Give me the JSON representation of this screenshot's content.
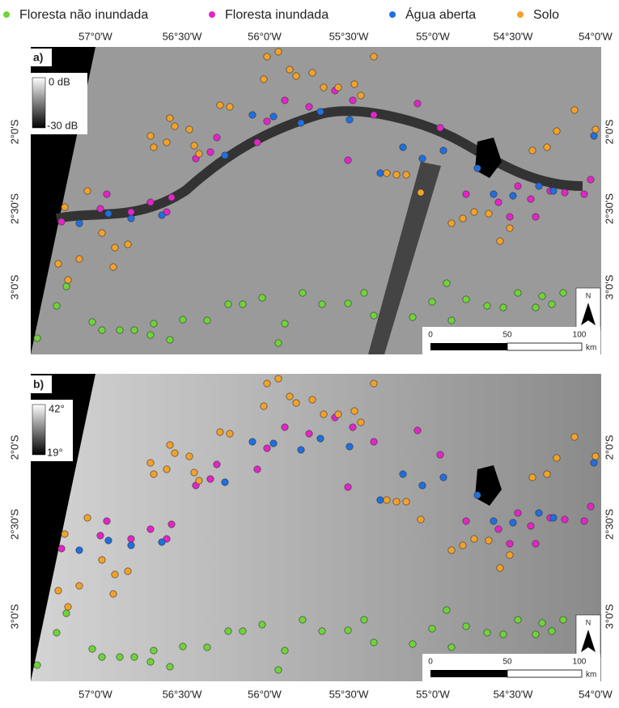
{
  "legend": {
    "items": [
      {
        "label": "Floresta não inundada",
        "color": "#6fd33a"
      },
      {
        "label": "Floresta inundada",
        "color": "#e325c8"
      },
      {
        "label": "Água aberta",
        "color": "#1f6fe0"
      },
      {
        "label": "Solo",
        "color": "#f2a12a"
      }
    ]
  },
  "longitude_labels": [
    "57°0'W",
    "56°30'W",
    "56°0'W",
    "55°30'W",
    "55°0'W",
    "54°30'W",
    "54°0'W"
  ],
  "latitude_labels": [
    "2°0'S",
    "2°30'S",
    "3°0'S"
  ],
  "panels": [
    {
      "label": "a)",
      "colorbar": {
        "top": "0 dB",
        "bottom": "-30 dB"
      }
    },
    {
      "label": "b)",
      "colorbar": {
        "top": "42°",
        "bottom": "19°"
      }
    }
  ],
  "scale_bar": {
    "labels": [
      "0",
      "50",
      "100"
    ],
    "unit": "km"
  },
  "north_arrow": "N"
}
